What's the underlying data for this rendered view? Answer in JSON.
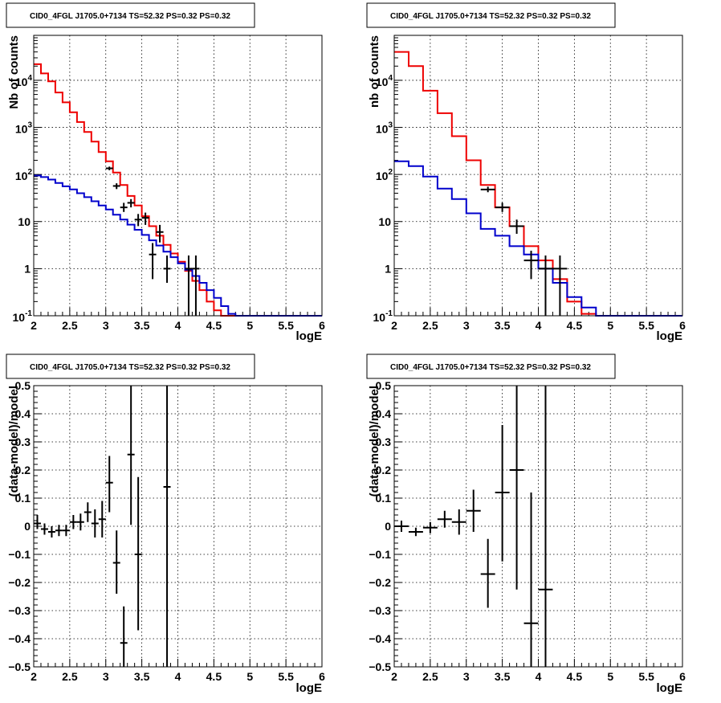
{
  "chart_data": [
    {
      "type": "line",
      "title": "CID0_4FGL J1705.0+7134 TS=52.32 PS=0.32 PS=0.32",
      "xlabel": "logE",
      "ylabel": "Nb of counts",
      "xlim": [
        2,
        6
      ],
      "ylim": [
        0.1,
        90000
      ],
      "log_y": true,
      "grid": true,
      "x_ticks": [
        "2",
        "2.5",
        "3",
        "3.5",
        "4",
        "4.5",
        "5",
        "5.5",
        "6"
      ],
      "y_ticks": [
        {
          "v": 0.1,
          "label": "10^-1"
        },
        {
          "v": 1,
          "label": "1"
        },
        {
          "v": 10,
          "label": "10"
        },
        {
          "v": 100,
          "label": "10^2"
        },
        {
          "v": 1000,
          "label": "10^3"
        },
        {
          "v": 10000,
          "label": "10^4"
        }
      ],
      "bin_edges": [
        2,
        2.1,
        2.2,
        2.3,
        2.4,
        2.5,
        2.6,
        2.7,
        2.8,
        2.9,
        3.0,
        3.1,
        3.2,
        3.3,
        3.4,
        3.5,
        3.6,
        3.7,
        3.8,
        3.9,
        4.0,
        4.1,
        4.2,
        4.3,
        4.4,
        4.5,
        4.6,
        4.7,
        4.8,
        4.9,
        5.0,
        5.1,
        5.2,
        5.3,
        5.4,
        5.5,
        5.6,
        5.7,
        5.8,
        5.9,
        6.0
      ],
      "series": [
        {
          "color": "#ee0000",
          "values": [
            22000,
            14000,
            9500,
            5500,
            3400,
            2100,
            1300,
            800,
            500,
            300,
            190,
            110,
            60,
            35,
            22,
            13,
            8,
            5,
            3.2,
            2.1,
            1.4,
            0.9,
            0.55,
            0.35,
            0.2,
            0.13,
            0.1,
            0.1,
            0.1,
            0.1,
            0.1,
            0.1,
            0.1,
            0.1,
            0.1,
            0.1,
            0.1,
            0.1,
            0.1,
            0.1
          ]
        },
        {
          "color": "#0000cc",
          "values": [
            95,
            88,
            78,
            66,
            56,
            48,
            40,
            33,
            27,
            22,
            18,
            14,
            11,
            8.6,
            6.7,
            5.2,
            4.0,
            3.1,
            2.3,
            1.75,
            1.3,
            0.95,
            0.7,
            0.5,
            0.35,
            0.24,
            0.16,
            0.11,
            0.1,
            0.1,
            0.1,
            0.1,
            0.1,
            0.1,
            0.1,
            0.1,
            0.1,
            0.1,
            0.1,
            0.1
          ]
        }
      ],
      "points": [
        {
          "x": 3.05,
          "y": 135,
          "lo": 123,
          "hi": 147,
          "dx": 0.05
        },
        {
          "x": 3.15,
          "y": 57,
          "lo": 49,
          "hi": 65,
          "dx": 0.05
        },
        {
          "x": 3.25,
          "y": 20,
          "lo": 16,
          "hi": 25,
          "dx": 0.05
        },
        {
          "x": 3.35,
          "y": 25,
          "lo": 20,
          "hi": 30,
          "dx": 0.05
        },
        {
          "x": 3.45,
          "y": 11,
          "lo": 8,
          "hi": 14.5,
          "dx": 0.05
        },
        {
          "x": 3.55,
          "y": 12,
          "lo": 8.5,
          "hi": 15.5,
          "dx": 0.05
        },
        {
          "x": 3.65,
          "y": 2,
          "lo": 0.6,
          "hi": 3.5,
          "dx": 0.05
        },
        {
          "x": 3.75,
          "y": 6,
          "lo": 3.6,
          "hi": 8.5,
          "dx": 0.05
        },
        {
          "x": 3.85,
          "y": 1,
          "lo": 0.5,
          "hi": 1.9,
          "dx": 0.05
        },
        {
          "x": 4.15,
          "y": 1,
          "lo": 0.1,
          "hi": 1.9,
          "dx": 0.05
        },
        {
          "x": 4.25,
          "y": 1,
          "lo": 0.1,
          "hi": 1.9,
          "dx": 0.05
        }
      ]
    },
    {
      "type": "line",
      "title": "CID0_4FGL J1705.0+7134 TS=52.32 PS=0.32 PS=0.32",
      "xlabel": "logE",
      "ylabel": "nb of counts",
      "xlim": [
        2,
        6
      ],
      "ylim": [
        0.1,
        90000
      ],
      "log_y": true,
      "grid": true,
      "x_ticks": [
        "2",
        "2.5",
        "3",
        "3.5",
        "4",
        "4.5",
        "5",
        "5.5",
        "6"
      ],
      "y_ticks": [
        {
          "v": 0.1,
          "label": "10^-1"
        },
        {
          "v": 1,
          "label": "1"
        },
        {
          "v": 10,
          "label": "10"
        },
        {
          "v": 100,
          "label": "10^2"
        },
        {
          "v": 1000,
          "label": "10^3"
        },
        {
          "v": 10000,
          "label": "10^4"
        }
      ],
      "bin_edges": [
        2,
        2.2,
        2.4,
        2.6,
        2.8,
        3.0,
        3.2,
        3.4,
        3.6,
        3.8,
        4.0,
        4.2,
        4.4,
        4.6,
        4.8,
        5.0,
        5.2,
        5.4,
        5.6,
        5.8,
        6.0
      ],
      "series": [
        {
          "color": "#ee0000",
          "values": [
            40000,
            20000,
            6000,
            2000,
            650,
            200,
            60,
            20,
            8,
            3,
            1.5,
            0.6,
            0.2,
            0.11,
            0.1,
            0.1,
            0.1,
            0.1,
            0.1,
            0.1
          ]
        },
        {
          "color": "#0000cc",
          "values": [
            190,
            150,
            90,
            50,
            30,
            15,
            7,
            5,
            3,
            2,
            1,
            0.5,
            0.25,
            0.15,
            0.1,
            0.1,
            0.1,
            0.1,
            0.1,
            0.1
          ]
        }
      ],
      "points": [
        {
          "x": 3.3,
          "y": 48,
          "lo": 42,
          "hi": 55,
          "dx": 0.1
        },
        {
          "x": 3.5,
          "y": 20,
          "lo": 16,
          "hi": 25,
          "dx": 0.1
        },
        {
          "x": 3.7,
          "y": 8,
          "lo": 5.5,
          "hi": 11,
          "dx": 0.1
        },
        {
          "x": 3.9,
          "y": 1.5,
          "lo": 0.6,
          "hi": 2.4,
          "dx": 0.1
        },
        {
          "x": 4.1,
          "y": 1,
          "lo": 0.1,
          "hi": 1.9,
          "dx": 0.1
        },
        {
          "x": 4.3,
          "y": 1,
          "lo": 0.1,
          "hi": 1.9,
          "dx": 0.1
        }
      ]
    },
    {
      "type": "scatter",
      "title": "CID0_4FGL J1705.0+7134 TS=52.32 PS=0.32 PS=0.32",
      "xlabel": "logE",
      "ylabel": "(data-model)/model",
      "xlim": [
        2,
        6
      ],
      "ylim": [
        -0.5,
        0.5
      ],
      "log_y": false,
      "grid": true,
      "x_ticks": [
        "2",
        "2.5",
        "3",
        "3.5",
        "4",
        "4.5",
        "5",
        "5.5",
        "6"
      ],
      "y_ticks": [
        {
          "v": -0.5,
          "label": "-0.5"
        },
        {
          "v": -0.4,
          "label": "-0.4"
        },
        {
          "v": -0.3,
          "label": "-0.3"
        },
        {
          "v": -0.2,
          "label": "-0.2"
        },
        {
          "v": -0.1,
          "label": "-0.1"
        },
        {
          "v": 0,
          "label": "0"
        },
        {
          "v": 0.1,
          "label": "0.1"
        },
        {
          "v": 0.2,
          "label": "0.2"
        },
        {
          "v": 0.3,
          "label": "0.3"
        },
        {
          "v": 0.4,
          "label": "0.4"
        },
        {
          "v": 0.5,
          "label": "0.5"
        }
      ],
      "points": [
        {
          "x": 2.05,
          "y": 0.01,
          "lo": -0.01,
          "hi": 0.04,
          "dx": 0.05
        },
        {
          "x": 2.15,
          "y": -0.01,
          "lo": -0.03,
          "hi": 0.01,
          "dx": 0.05
        },
        {
          "x": 2.25,
          "y": -0.02,
          "lo": -0.04,
          "hi": 0.0,
          "dx": 0.05
        },
        {
          "x": 2.35,
          "y": -0.015,
          "lo": -0.035,
          "hi": 0.005,
          "dx": 0.05
        },
        {
          "x": 2.45,
          "y": -0.015,
          "lo": -0.035,
          "hi": 0.005,
          "dx": 0.05
        },
        {
          "x": 2.55,
          "y": 0.015,
          "lo": -0.01,
          "hi": 0.04,
          "dx": 0.05
        },
        {
          "x": 2.65,
          "y": 0.015,
          "lo": -0.015,
          "hi": 0.045,
          "dx": 0.05
        },
        {
          "x": 2.75,
          "y": 0.05,
          "lo": 0.015,
          "hi": 0.085,
          "dx": 0.05
        },
        {
          "x": 2.85,
          "y": 0.01,
          "lo": -0.04,
          "hi": 0.06,
          "dx": 0.05
        },
        {
          "x": 2.95,
          "y": 0.025,
          "lo": -0.04,
          "hi": 0.09,
          "dx": 0.05
        },
        {
          "x": 3.05,
          "y": 0.155,
          "lo": 0.05,
          "hi": 0.25,
          "dx": 0.05
        },
        {
          "x": 3.15,
          "y": -0.13,
          "lo": -0.24,
          "hi": -0.015,
          "dx": 0.05
        },
        {
          "x": 3.25,
          "y": -0.415,
          "lo": -0.5,
          "hi": -0.285,
          "dx": 0.05
        },
        {
          "x": 3.35,
          "y": 0.255,
          "lo": 0.005,
          "hi": 0.5,
          "dx": 0.05
        },
        {
          "x": 3.45,
          "y": -0.1,
          "lo": -0.37,
          "hi": 0.175,
          "dx": 0.05
        },
        {
          "x": 3.85,
          "y": 0.14,
          "lo": -0.5,
          "hi": 0.5,
          "dx": 0.05
        }
      ]
    },
    {
      "type": "scatter",
      "title": "CID0_4FGL J1705.0+7134 TS=52.32 PS=0.32 PS=0.32",
      "xlabel": "logE",
      "ylabel": "(data-model)/model",
      "xlim": [
        2,
        6
      ],
      "ylim": [
        -0.5,
        0.5
      ],
      "log_y": false,
      "grid": true,
      "x_ticks": [
        "2",
        "2.5",
        "3",
        "3.5",
        "4",
        "4.5",
        "5",
        "5.5",
        "6"
      ],
      "y_ticks": [
        {
          "v": -0.5,
          "label": "-0.5"
        },
        {
          "v": -0.4,
          "label": "-0.4"
        },
        {
          "v": -0.3,
          "label": "-0.3"
        },
        {
          "v": -0.2,
          "label": "-0.2"
        },
        {
          "v": -0.1,
          "label": "-0.1"
        },
        {
          "v": 0,
          "label": "0"
        },
        {
          "v": 0.1,
          "label": "0.1"
        },
        {
          "v": 0.2,
          "label": "0.2"
        },
        {
          "v": 0.3,
          "label": "0.3"
        },
        {
          "v": 0.4,
          "label": "0.4"
        },
        {
          "v": 0.5,
          "label": "0.5"
        }
      ],
      "points": [
        {
          "x": 2.1,
          "y": 0.0,
          "lo": -0.02,
          "hi": 0.02,
          "dx": 0.1
        },
        {
          "x": 2.3,
          "y": -0.02,
          "lo": -0.035,
          "hi": -0.005,
          "dx": 0.1
        },
        {
          "x": 2.5,
          "y": -0.005,
          "lo": -0.025,
          "hi": 0.015,
          "dx": 0.1
        },
        {
          "x": 2.7,
          "y": 0.025,
          "lo": -0.005,
          "hi": 0.055,
          "dx": 0.1
        },
        {
          "x": 2.9,
          "y": 0.015,
          "lo": -0.03,
          "hi": 0.06,
          "dx": 0.1
        },
        {
          "x": 3.1,
          "y": 0.055,
          "lo": -0.02,
          "hi": 0.13,
          "dx": 0.1
        },
        {
          "x": 3.3,
          "y": -0.17,
          "lo": -0.29,
          "hi": -0.045,
          "dx": 0.1
        },
        {
          "x": 3.5,
          "y": 0.12,
          "lo": -0.125,
          "hi": 0.36,
          "dx": 0.1
        },
        {
          "x": 3.7,
          "y": 0.2,
          "lo": -0.225,
          "hi": 0.5,
          "dx": 0.1
        },
        {
          "x": 3.9,
          "y": -0.345,
          "lo": -0.5,
          "hi": 0.12,
          "dx": 0.1
        },
        {
          "x": 4.1,
          "y": -0.225,
          "lo": -0.5,
          "hi": 0.5,
          "dx": 0.1
        }
      ]
    }
  ]
}
